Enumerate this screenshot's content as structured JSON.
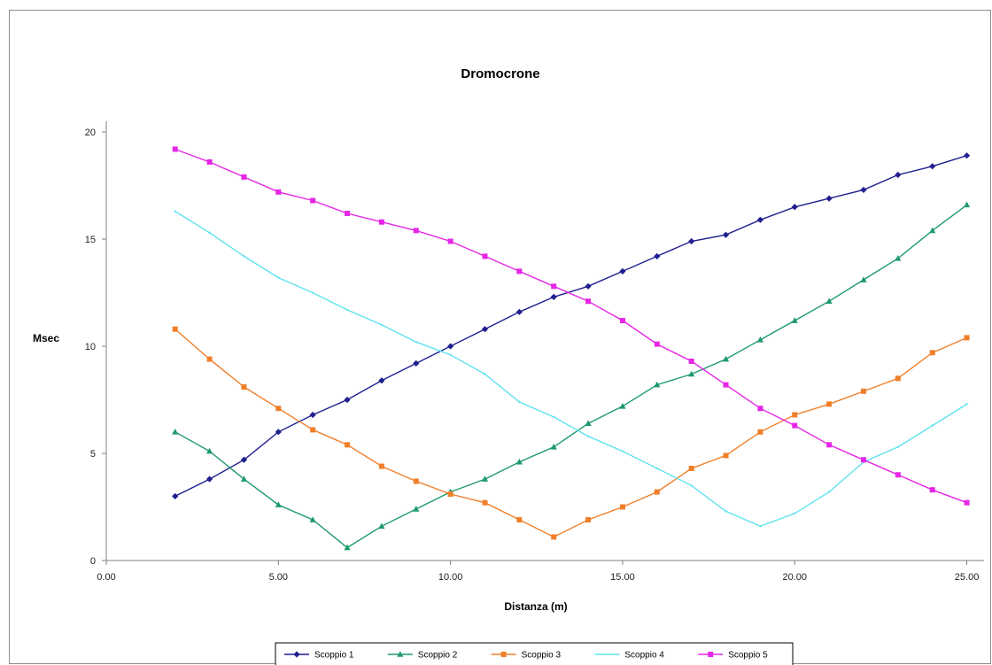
{
  "chart_data": {
    "type": "line",
    "title": "Dromocrone",
    "xlabel": "Distanza (m)",
    "ylabel": "Msec",
    "xlim": [
      0,
      25.5
    ],
    "ylim": [
      0,
      20.5
    ],
    "x_ticks": [
      0,
      5,
      10,
      15,
      20,
      25
    ],
    "x_tick_labels": [
      "0.00",
      "5.00",
      "10.00",
      "15.00",
      "20.00",
      "25.00"
    ],
    "y_ticks": [
      0,
      5,
      10,
      15,
      20
    ],
    "y_tick_labels": [
      "0",
      "5",
      "10",
      "15",
      "20"
    ],
    "grid": false,
    "legend_position": "bottom",
    "x": [
      2,
      3,
      4,
      5,
      6,
      7,
      8,
      9,
      10,
      11,
      12,
      13,
      14,
      15,
      16,
      17,
      18,
      19,
      20,
      21,
      22,
      23,
      24,
      25
    ],
    "series": [
      {
        "name": "Scoppio 1",
        "color": "#1f1f8f",
        "marker": "diamond",
        "values": [
          3.0,
          3.8,
          4.7,
          6.0,
          6.8,
          7.5,
          8.4,
          9.2,
          10.0,
          10.8,
          11.6,
          12.3,
          12.8,
          13.5,
          14.2,
          14.9,
          15.2,
          15.9,
          16.5,
          16.9,
          17.3,
          18.0,
          18.4,
          18.9
        ]
      },
      {
        "name": "Scoppio 2",
        "color": "#1e9a6a",
        "marker": "triangle",
        "values": [
          6.0,
          5.1,
          3.8,
          2.6,
          1.9,
          0.6,
          1.6,
          2.4,
          3.2,
          3.8,
          4.6,
          5.3,
          6.4,
          7.2,
          8.2,
          8.7,
          9.4,
          10.3,
          11.2,
          12.1,
          13.1,
          14.1,
          15.4,
          16.6
        ]
      },
      {
        "name": "Scoppio 3",
        "color": "#f07f2a",
        "marker": "square",
        "values": [
          10.8,
          9.4,
          8.1,
          7.1,
          6.1,
          5.4,
          4.4,
          3.7,
          3.1,
          2.7,
          1.9,
          1.1,
          1.9,
          2.5,
          3.2,
          4.3,
          4.9,
          6.0,
          6.8,
          7.3,
          7.9,
          8.5,
          9.7,
          10.4
        ]
      },
      {
        "name": "Scoppio 4",
        "color": "#5fe3ef",
        "marker": "none",
        "values": [
          16.3,
          15.3,
          14.2,
          13.2,
          12.5,
          11.7,
          11.0,
          10.2,
          9.6,
          8.7,
          7.4,
          6.7,
          5.8,
          5.1,
          4.3,
          3.5,
          2.3,
          1.6,
          2.2,
          3.2,
          4.6,
          5.3,
          6.3,
          7.3
        ]
      },
      {
        "name": "Scoppio 5",
        "color": "#e626e6",
        "marker": "square",
        "values": [
          19.2,
          18.6,
          17.9,
          17.2,
          16.8,
          16.2,
          15.8,
          15.4,
          14.9,
          14.2,
          13.5,
          12.8,
          12.1,
          11.2,
          10.1,
          9.3,
          8.2,
          7.1,
          6.3,
          5.4,
          4.7,
          4.0,
          3.3,
          2.7
        ]
      }
    ]
  }
}
